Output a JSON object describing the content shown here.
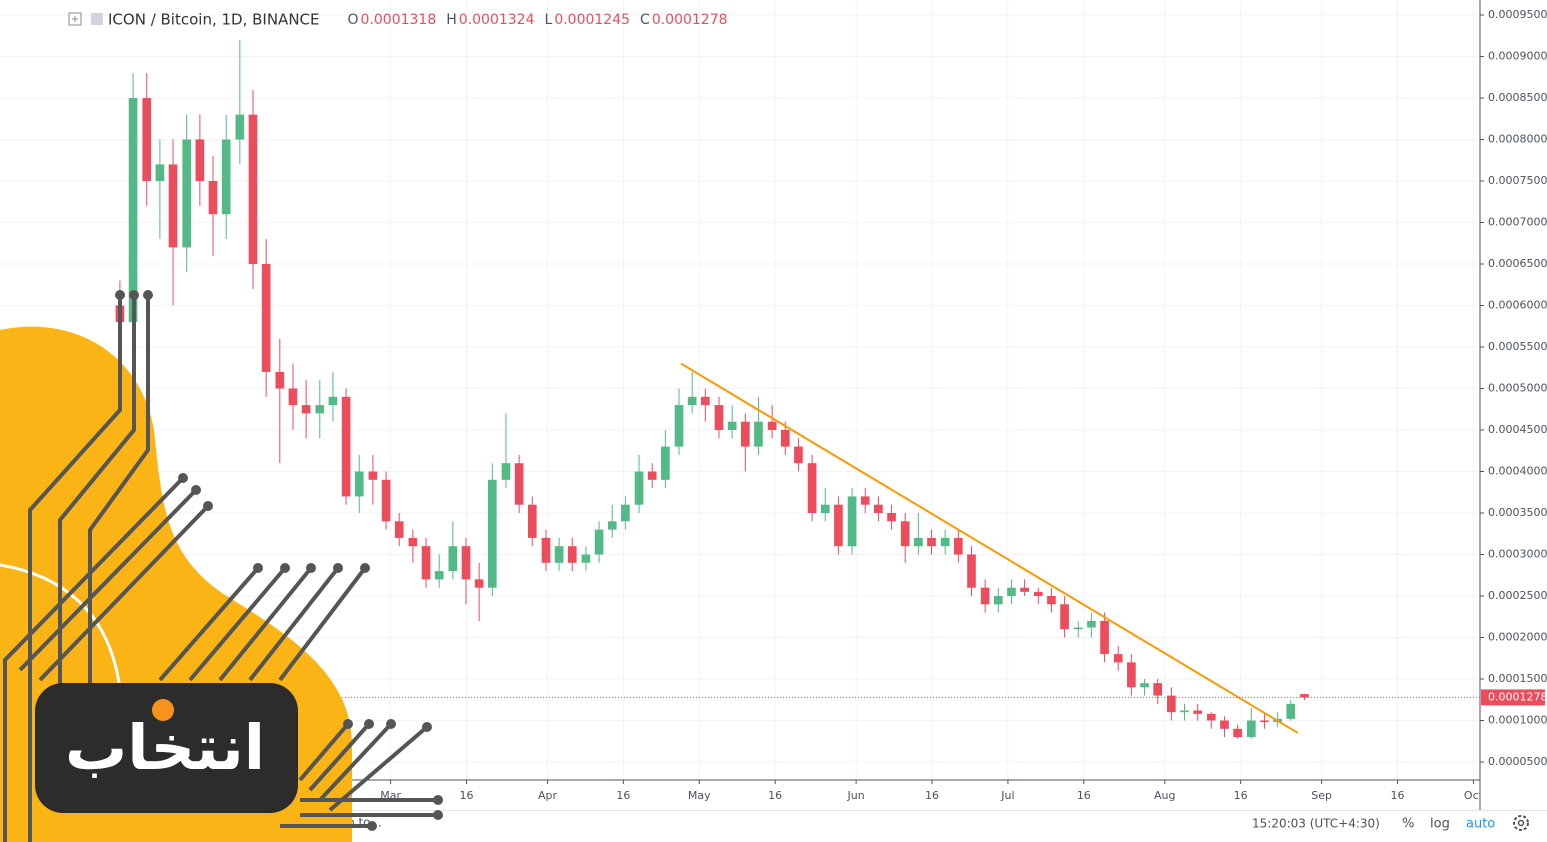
{
  "chart_data": {
    "type": "candlestick",
    "title": "ICON / Bitcoin, 1D, BINANCE",
    "ohlc_labels": [
      "O",
      "H",
      "L",
      "C"
    ],
    "up_color": "#53b987",
    "down_color": "#eb4d5c",
    "grid": true,
    "log_scale": false,
    "candles": {
      "x": [
        6.5,
        9.1,
        11.8,
        14.4,
        17.0,
        19.7,
        22.3,
        24.9,
        27.5,
        30.2,
        32.8,
        35.4,
        38.1,
        40.7,
        43.3,
        46.0,
        48.6,
        51.2,
        53.8,
        56.5,
        59.1,
        61.7,
        64.4,
        67.0,
        69.6,
        72.3,
        74.9,
        77.5,
        80.1,
        82.8,
        85.4,
        88.0,
        90.7,
        93.3,
        95.9,
        98.6,
        101.2,
        103.8,
        106.4,
        109.1,
        111.7,
        114.3,
        117.0,
        119.6,
        122.2,
        124.9,
        127.5,
        130.1,
        132.7,
        135.4,
        138.0,
        140.6,
        143.3,
        145.9,
        148.5,
        151.2,
        153.8,
        156.4,
        159.0,
        161.7,
        164.3,
        166.9,
        169.6,
        172.2,
        174.8,
        177.5,
        180.1,
        182.7,
        185.3,
        188.0,
        190.6,
        193.2,
        195.9,
        198.5,
        201.1,
        203.8,
        206.4,
        209.0,
        211.6,
        214.3,
        216.9,
        219.5,
        222.2,
        224.8,
        227.4,
        230.1,
        232.7,
        235.3,
        237.9,
        240.6
      ],
      "open": [
        0.0006,
        0.00058,
        0.00085,
        0.00075,
        0.00077,
        0.00067,
        0.0008,
        0.00075,
        0.00071,
        0.0008,
        0.00083,
        0.00065,
        0.00052,
        0.0005,
        0.00048,
        0.00047,
        0.00048,
        0.00049,
        0.00037,
        0.0004,
        0.00039,
        0.00034,
        0.00032,
        0.00031,
        0.00027,
        0.00028,
        0.00031,
        0.00027,
        0.00026,
        0.00039,
        0.00041,
        0.00036,
        0.00032,
        0.00029,
        0.00031,
        0.00029,
        0.0003,
        0.00033,
        0.00034,
        0.00036,
        0.0004,
        0.00039,
        0.00043,
        0.00048,
        0.00049,
        0.00048,
        0.00045,
        0.00046,
        0.00043,
        0.00046,
        0.00045,
        0.00043,
        0.00041,
        0.00035,
        0.00036,
        0.00031,
        0.00037,
        0.00036,
        0.00035,
        0.00034,
        0.00031,
        0.00032,
        0.00031,
        0.00032,
        0.0003,
        0.00026,
        0.00024,
        0.00025,
        0.00026,
        0.000255,
        0.00025,
        0.00024,
        0.00021,
        0.000212,
        0.00022,
        0.00018,
        0.00017,
        0.00014,
        0.000145,
        0.00013,
        0.00011,
        0.000112,
        0.000108,
        0.0001,
        9e-05,
        8e-05,
        0.0001,
        9.8e-05,
        0.000102,
        0.0001318
      ],
      "high": [
        0.00063,
        0.00088,
        0.00088,
        0.0008,
        0.0008,
        0.00083,
        0.00083,
        0.00078,
        0.00083,
        0.00092,
        0.00086,
        0.00068,
        0.00056,
        0.00053,
        0.00051,
        0.00051,
        0.00052,
        0.0005,
        0.00042,
        0.00042,
        0.0004,
        0.00035,
        0.00033,
        0.00032,
        0.0003,
        0.00034,
        0.00032,
        0.00029,
        0.00041,
        0.00047,
        0.00042,
        0.00037,
        0.00033,
        0.00032,
        0.00032,
        0.00031,
        0.00034,
        0.00036,
        0.00037,
        0.00042,
        0.00041,
        0.00045,
        0.0005,
        0.00052,
        0.0005,
        0.00049,
        0.00048,
        0.00047,
        0.00049,
        0.00048,
        0.00046,
        0.00044,
        0.00042,
        0.00038,
        0.00037,
        0.00038,
        0.00038,
        0.00037,
        0.00036,
        0.00035,
        0.00035,
        0.00033,
        0.00033,
        0.00033,
        0.00031,
        0.00027,
        0.00026,
        0.00027,
        0.00027,
        0.00026,
        0.00026,
        0.00025,
        0.00022,
        0.00023,
        0.00023,
        0.00019,
        0.00018,
        0.00015,
        0.00015,
        0.00014,
        0.00012,
        0.00012,
        0.00011,
        0.000105,
        9.5e-05,
        0.000115,
        0.000108,
        0.00011,
        0.000125,
        0.0001324
      ],
      "low": [
        0.00055,
        0.00055,
        0.00072,
        0.00068,
        0.0006,
        0.00064,
        0.00072,
        0.00066,
        0.00068,
        0.00077,
        0.00062,
        0.00049,
        0.00041,
        0.00045,
        0.00044,
        0.00044,
        0.00046,
        0.00036,
        0.00035,
        0.00036,
        0.00033,
        0.00031,
        0.00029,
        0.00026,
        0.00026,
        0.00027,
        0.00024,
        0.00022,
        0.00025,
        0.00038,
        0.00035,
        0.00031,
        0.00028,
        0.00028,
        0.00028,
        0.00028,
        0.00029,
        0.00032,
        0.00033,
        0.00035,
        0.00038,
        0.00038,
        0.00042,
        0.00047,
        0.00046,
        0.00044,
        0.00044,
        0.0004,
        0.00042,
        0.00044,
        0.00042,
        0.0004,
        0.00034,
        0.00034,
        0.0003,
        0.0003,
        0.00035,
        0.00034,
        0.00033,
        0.00029,
        0.0003,
        0.0003,
        0.0003,
        0.00029,
        0.00025,
        0.00023,
        0.00023,
        0.00024,
        0.00025,
        0.00024,
        0.00023,
        0.0002,
        0.0002,
        0.0002,
        0.00017,
        0.00016,
        0.00013,
        0.00013,
        0.00012,
        0.0001,
        0.0001,
        0.0001,
        9e-05,
        8e-05,
        7.8e-05,
        7.8e-05,
        9e-05,
        9.2e-05,
        0.0001,
        0.0001245
      ],
      "close": [
        0.00058,
        0.00085,
        0.00075,
        0.00077,
        0.00067,
        0.0008,
        0.00075,
        0.00071,
        0.0008,
        0.00083,
        0.00065,
        0.00052,
        0.0005,
        0.00048,
        0.00047,
        0.00048,
        0.00049,
        0.00037,
        0.0004,
        0.00039,
        0.00034,
        0.00032,
        0.00031,
        0.00027,
        0.00028,
        0.00031,
        0.00027,
        0.00026,
        0.00039,
        0.00041,
        0.00036,
        0.00032,
        0.00029,
        0.00031,
        0.00029,
        0.0003,
        0.00033,
        0.00034,
        0.00036,
        0.0004,
        0.00039,
        0.00043,
        0.00048,
        0.00049,
        0.00048,
        0.00045,
        0.00046,
        0.00043,
        0.00046,
        0.00045,
        0.00043,
        0.00041,
        0.00035,
        0.00036,
        0.00031,
        0.00037,
        0.00036,
        0.00035,
        0.00034,
        0.00031,
        0.00032,
        0.00031,
        0.00032,
        0.0003,
        0.00026,
        0.00024,
        0.00025,
        0.00026,
        0.000255,
        0.00025,
        0.00024,
        0.00021,
        0.000212,
        0.00022,
        0.00018,
        0.00017,
        0.00014,
        0.000145,
        0.00013,
        0.00011,
        0.000112,
        0.000108,
        0.0001,
        9e-05,
        8e-05,
        0.0001,
        9.8e-05,
        0.000102,
        0.00012,
        0.0001278
      ]
    },
    "trend_line": {
      "x": [
        117.4,
        239.3
      ],
      "y": [
        0.00053,
        8.5e-05
      ],
      "color": "#ff9800"
    },
    "xlim": [
      -17.2,
      275.3
    ],
    "ylim": [
      2.83e-05,
      0.0009681
    ],
    "xticks": [
      {
        "value": 60,
        "label": "Mar"
      },
      {
        "value": 75,
        "label": "16"
      },
      {
        "value": 91,
        "label": "Apr"
      },
      {
        "value": 106,
        "label": "16"
      },
      {
        "value": 121,
        "label": "May"
      },
      {
        "value": 136,
        "label": "16"
      },
      {
        "value": 152,
        "label": "Jun"
      },
      {
        "value": 167,
        "label": "16"
      },
      {
        "value": 182,
        "label": "Jul"
      },
      {
        "value": 197,
        "label": "16"
      },
      {
        "value": 213,
        "label": "Aug"
      },
      {
        "value": 228,
        "label": "16"
      },
      {
        "value": 244,
        "label": "Sep"
      },
      {
        "value": 259,
        "label": "16"
      },
      {
        "value": 274,
        "label": "Oct"
      }
    ],
    "yticks": [
      {
        "value": 5e-05,
        "label": "0.0000500"
      },
      {
        "value": 0.0001,
        "label": "0.0001000"
      },
      {
        "value": 0.00015,
        "label": "0.0001500"
      },
      {
        "value": 0.0002,
        "label": "0.0002000"
      },
      {
        "value": 0.00025,
        "label": "0.0002500"
      },
      {
        "value": 0.0003,
        "label": "0.0003000"
      },
      {
        "value": 0.00035,
        "label": "0.0003500"
      },
      {
        "value": 0.0004,
        "label": "0.0004000"
      },
      {
        "value": 0.00045,
        "label": "0.0004500"
      },
      {
        "value": 0.0005,
        "label": "0.0005000"
      },
      {
        "value": 0.00055,
        "label": "0.0005500"
      },
      {
        "value": 0.0006,
        "label": "0.0006000"
      },
      {
        "value": 0.00065,
        "label": "0.0006500"
      },
      {
        "value": 0.0007,
        "label": "0.0007000"
      },
      {
        "value": 0.00075,
        "label": "0.0007500"
      },
      {
        "value": 0.0008,
        "label": "0.0008000"
      },
      {
        "value": 0.00085,
        "label": "0.0008500"
      },
      {
        "value": 0.0009,
        "label": "0.0009000"
      },
      {
        "value": 0.00095,
        "label": "0.0009500"
      }
    ]
  },
  "toolbar": {
    "time": "15:20:03 (UTC+4:30)",
    "percent": "%",
    "log": "log",
    "auto": "auto",
    "goto": "Go to..."
  },
  "watermark": {
    "text": "انتخاب"
  }
}
